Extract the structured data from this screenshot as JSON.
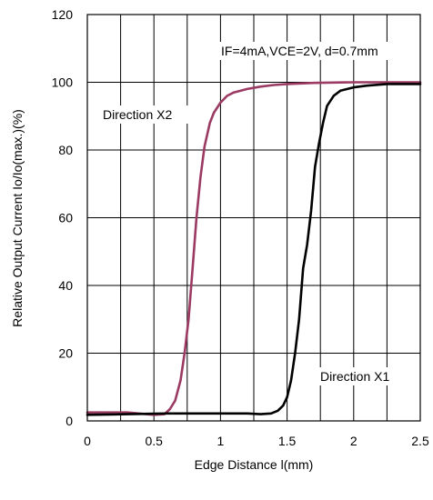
{
  "chart_data": {
    "type": "line",
    "xlabel": "Edge Distance l(mm)",
    "ylabel": "Relative Output Current Io/Io(max.)(%)",
    "xlim": [
      0,
      2.5
    ],
    "ylim": [
      0,
      120
    ],
    "x_ticks": [
      "0",
      "0.5",
      "1",
      "1.5",
      "2",
      "2.5"
    ],
    "y_ticks": [
      "0",
      "20",
      "40",
      "60",
      "80",
      "100",
      "120"
    ],
    "x_tick_values": [
      0,
      0.5,
      1,
      1.5,
      2,
      2.5
    ],
    "y_tick_values": [
      0,
      20,
      40,
      60,
      80,
      100,
      120
    ],
    "x_grid_step": 0.25,
    "grid": true,
    "annotations": {
      "condition": "IF=4mA,VCE=2V, d=0.7mm",
      "direction_x2": "Direction X2",
      "direction_x1": "Direction X1"
    },
    "series": [
      {
        "color": "#9b3a62",
        "x": [
          0,
          0.3,
          0.5,
          0.58,
          0.62,
          0.66,
          0.7,
          0.73,
          0.76,
          0.79,
          0.82,
          0.85,
          0.88,
          0.92,
          0.95,
          1.0,
          1.05,
          1.1,
          1.2,
          1.3,
          1.4,
          1.5,
          1.7,
          2.0,
          2.5
        ],
        "y": [
          2.5,
          2.5,
          1.8,
          2,
          3.5,
          6,
          12,
          20,
          30,
          45,
          60,
          72,
          81,
          88,
          91,
          94,
          96,
          97,
          98,
          98.7,
          99.2,
          99.5,
          99.8,
          100,
          100
        ]
      },
      {
        "color": "#000000",
        "x": [
          0,
          0.3,
          0.6,
          1.0,
          1.2,
          1.3,
          1.38,
          1.43,
          1.47,
          1.5,
          1.53,
          1.56,
          1.59,
          1.62,
          1.65,
          1.68,
          1.71,
          1.74,
          1.77,
          1.8,
          1.85,
          1.9,
          2.0,
          2.1,
          2.25,
          2.5
        ],
        "y": [
          1.8,
          2,
          2.2,
          2.2,
          2.2,
          2,
          2.2,
          3,
          4.5,
          7,
          12,
          20,
          30,
          45,
          52,
          62,
          75,
          82,
          88,
          93,
          96,
          97.5,
          98.5,
          99,
          99.5,
          99.5
        ]
      }
    ]
  }
}
